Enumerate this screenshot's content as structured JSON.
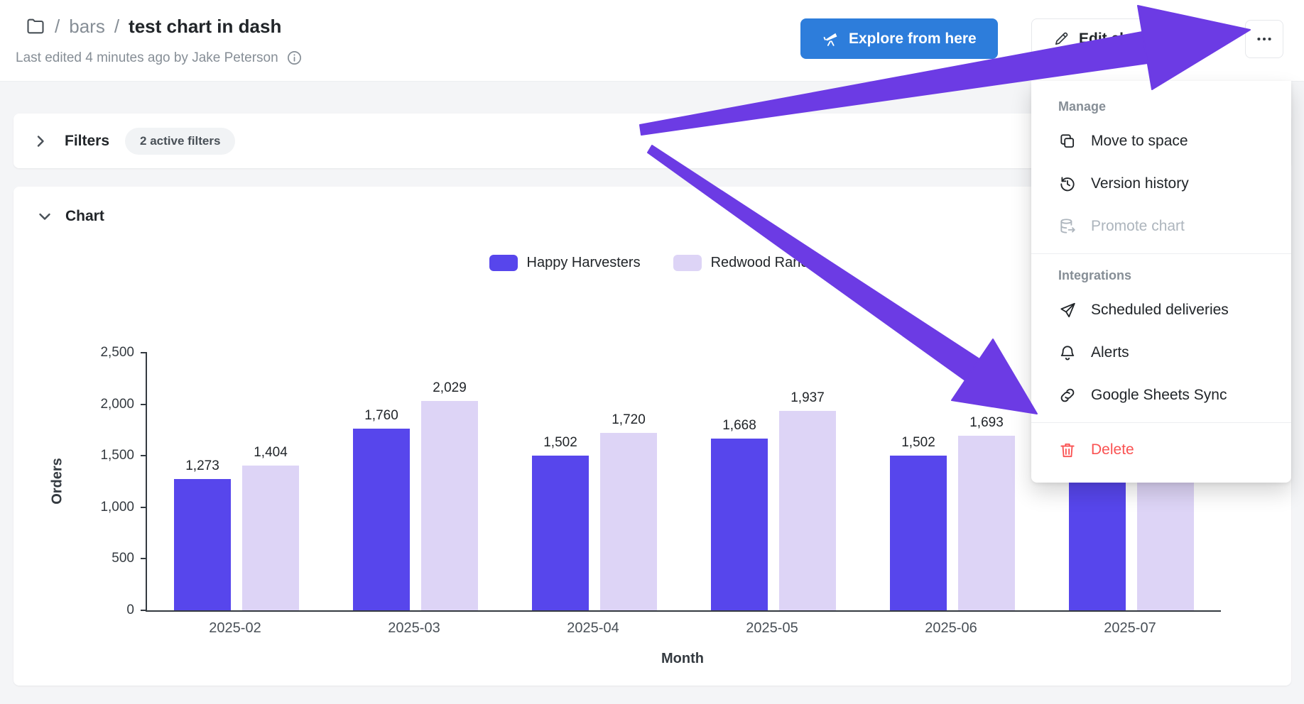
{
  "header": {
    "breadcrumb": {
      "sep1": "/",
      "folder_name": "bars",
      "sep2": "/",
      "chart_title": "test chart in dash"
    },
    "subtitle": "Last edited 4 minutes ago by Jake Peterson",
    "actions": {
      "explore_label": "Explore from here",
      "edit_label": "Edit chart",
      "more_icon": "ellipsis-icon"
    }
  },
  "filters_bar": {
    "title": "Filters",
    "badge": "2 active filters"
  },
  "chart_section": {
    "title": "Chart"
  },
  "chart_data": {
    "type": "bar",
    "title": "",
    "xlabel": "Month",
    "ylabel": "Orders",
    "ylim": [
      0,
      2500
    ],
    "ytick_labels": [
      "0",
      "500",
      "1,000",
      "1,500",
      "2,000",
      "2,500"
    ],
    "grid": false,
    "legend_position": "top-center",
    "categories": [
      "2025-02",
      "2025-03",
      "2025-04",
      "2025-05",
      "2025-06",
      "2025-07"
    ],
    "series": [
      {
        "name": "Happy Harvesters",
        "color": "#5746EC",
        "values": [
          1273,
          1760,
          1502,
          1668,
          1502,
          1450
        ],
        "labels": [
          "1,273",
          "1,760",
          "1,502",
          "1,668",
          "1,502",
          ""
        ]
      },
      {
        "name": "Redwood Ranch",
        "color": "#DDD4F6",
        "values": [
          1404,
          2029,
          1720,
          1937,
          1693,
          1600
        ],
        "labels": [
          "1,404",
          "2,029",
          "1,720",
          "1,937",
          "1,693",
          ""
        ]
      }
    ]
  },
  "menu": {
    "sections": [
      {
        "label": "Manage",
        "items": [
          {
            "label": "Move to space",
            "icon": "move-to-space-icon",
            "state": "normal"
          },
          {
            "label": "Version history",
            "icon": "version-history-icon",
            "state": "normal"
          },
          {
            "label": "Promote chart",
            "icon": "promote-chart-icon",
            "state": "disabled"
          }
        ]
      },
      {
        "label": "Integrations",
        "items": [
          {
            "label": "Scheduled deliveries",
            "icon": "send-icon",
            "state": "normal"
          },
          {
            "label": "Alerts",
            "icon": "bell-icon",
            "state": "normal"
          },
          {
            "label": "Google Sheets Sync",
            "icon": "link-icon",
            "state": "normal"
          }
        ]
      },
      {
        "label": "",
        "items": [
          {
            "label": "Delete",
            "icon": "trash-icon",
            "state": "danger"
          }
        ]
      }
    ]
  },
  "colors": {
    "primary_blue": "#2D7DDB",
    "series_purple": "#5746EC",
    "series_lavender": "#DDD4F6",
    "annotation_arrow": "#6C3BE4",
    "danger_red": "#FA5252",
    "disabled_gray": "#ADB5BD"
  }
}
